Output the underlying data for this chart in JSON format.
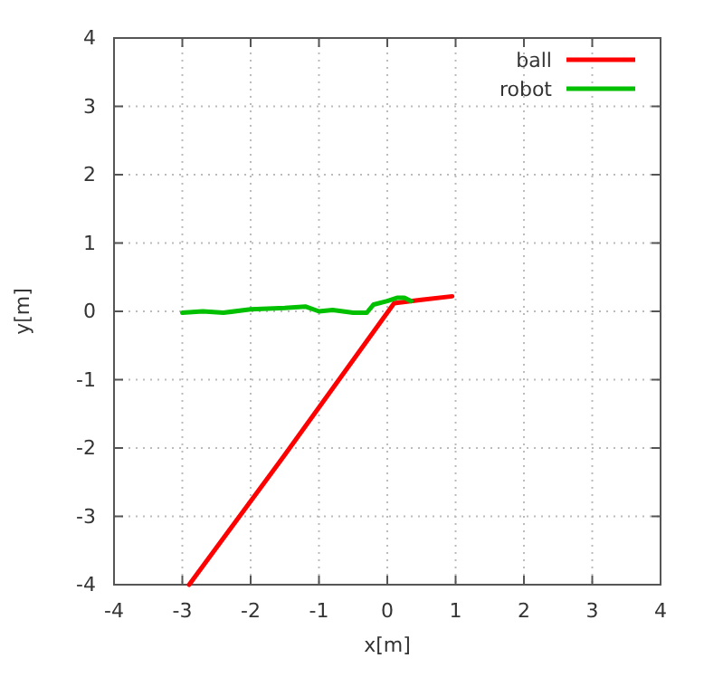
{
  "chart_data": {
    "type": "line",
    "xlabel": "x[m]",
    "ylabel": "y[m]",
    "xlim": [
      -4,
      4
    ],
    "ylim": [
      -4,
      4
    ],
    "xticks": [
      -4,
      -3,
      -2,
      -1,
      0,
      1,
      2,
      3,
      4
    ],
    "yticks": [
      -4,
      -3,
      -2,
      -1,
      0,
      1,
      2,
      3,
      4
    ],
    "grid": true,
    "legend": "top right",
    "line_style": "solid",
    "series": [
      {
        "name": "ball",
        "color": "#ff0000",
        "x": [
          -2.9,
          -1.5,
          0.1,
          0.5,
          0.95
        ],
        "values": [
          -4,
          -2.1,
          0.12,
          0.17,
          0.22
        ]
      },
      {
        "name": "robot",
        "color": "#00c000",
        "x": [
          -3,
          -2.7,
          -2.4,
          -2,
          -1.5,
          -1.2,
          -1,
          -0.8,
          -0.5,
          -0.3,
          -0.2,
          0,
          0.15,
          0.25,
          0.35
        ],
        "values": [
          -0.02,
          0,
          -0.02,
          0.03,
          0.05,
          0.07,
          0,
          0.02,
          -0.02,
          -0.02,
          0.1,
          0.15,
          0.2,
          0.2,
          0.15
        ]
      }
    ]
  }
}
